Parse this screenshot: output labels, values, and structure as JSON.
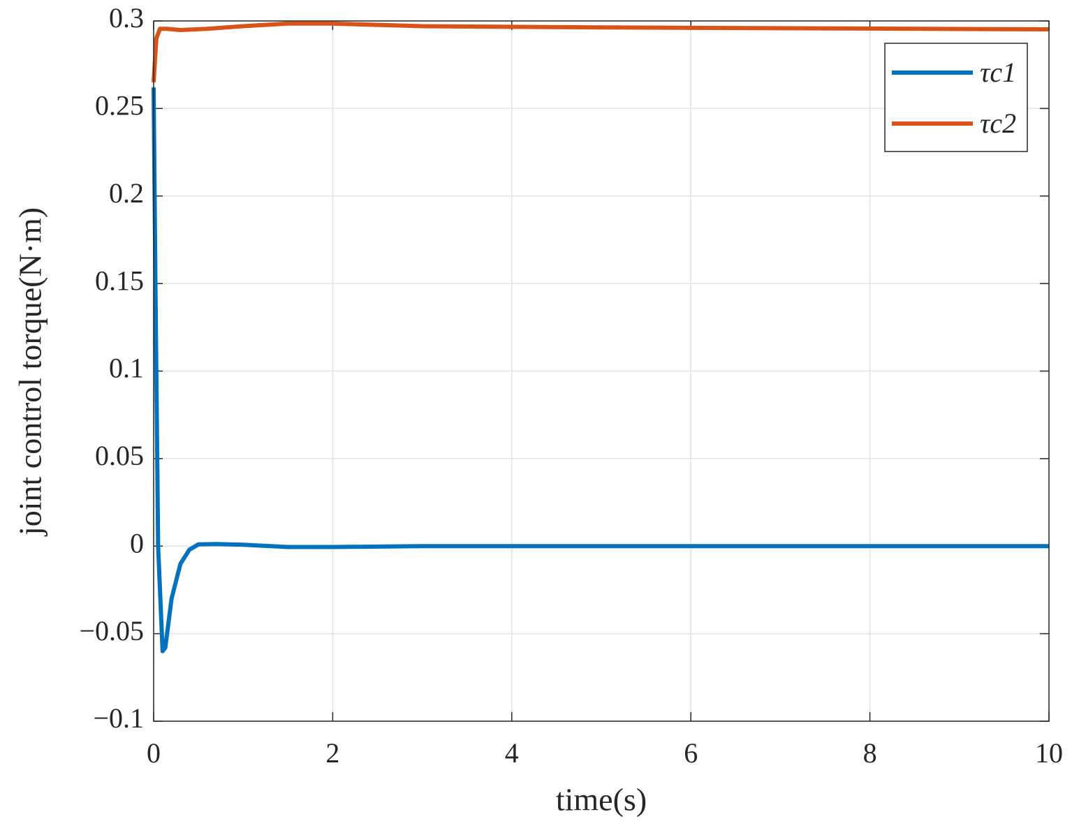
{
  "chart_data": {
    "type": "line",
    "xlabel": "time(s)",
    "ylabel": "joint control torque(N·m)",
    "xlim": [
      0,
      10
    ],
    "xticks": [
      0,
      2,
      4,
      6,
      8,
      10
    ],
    "ylim": [
      -0.1,
      0.3
    ],
    "yticks": [
      {
        "value": -0.1,
        "label": "−0.1"
      },
      {
        "value": -0.05,
        "label": "−0.05"
      },
      0,
      0.05,
      0.1,
      0.15,
      0.2,
      0.25,
      0.3
    ],
    "grid": true,
    "legend": "upper right",
    "series": [
      {
        "name": "τc1",
        "color": "#0072bd",
        "x": [
          0,
          0.02,
          0.05,
          0.1,
          0.13,
          0.2,
          0.3,
          0.4,
          0.5,
          0.7,
          1,
          1.5,
          2,
          3,
          10
        ],
        "values": [
          0.262,
          0.15,
          0.0,
          -0.06,
          -0.058,
          -0.03,
          -0.01,
          -0.002,
          0.001,
          0.0012,
          0.0008,
          -0.0005,
          -0.0005,
          0,
          0
        ]
      },
      {
        "name": "τc2",
        "color": "#d95319",
        "x": [
          0,
          0.03,
          0.07,
          0.15,
          0.3,
          0.6,
          1,
          1.5,
          2,
          3,
          5,
          10
        ],
        "values": [
          0.265,
          0.29,
          0.2955,
          0.2955,
          0.2948,
          0.2955,
          0.297,
          0.2985,
          0.2985,
          0.297,
          0.2963,
          0.2952
        ]
      }
    ]
  }
}
